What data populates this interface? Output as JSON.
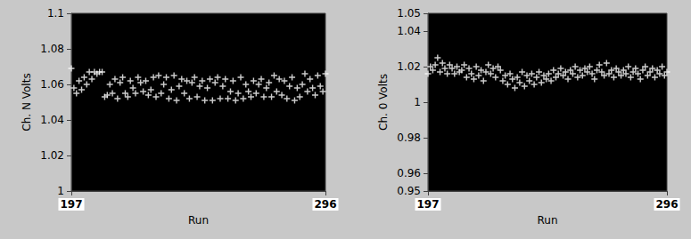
{
  "chart_data": [
    {
      "type": "scatter",
      "xlabel": "Run",
      "ylabel": "Ch. N Volts",
      "color": "#ffffff",
      "marker": "plus",
      "grid": false,
      "xlim": [
        197,
        296
      ],
      "xticks": [
        197,
        296
      ],
      "ylim": [
        1,
        1.1
      ],
      "yticks": [
        1,
        1.02,
        1.04,
        1.06,
        1.08,
        1.1
      ],
      "x": [
        197,
        198,
        199,
        200,
        201,
        202,
        203,
        204,
        205,
        206,
        207,
        208,
        209,
        210,
        211,
        212,
        213,
        214,
        215,
        216,
        217,
        218,
        219,
        220,
        221,
        222,
        223,
        224,
        225,
        226,
        227,
        228,
        229,
        230,
        231,
        232,
        233,
        234,
        235,
        236,
        237,
        238,
        239,
        240,
        241,
        242,
        243,
        244,
        245,
        246,
        247,
        248,
        249,
        250,
        251,
        252,
        253,
        254,
        255,
        256,
        257,
        258,
        259,
        260,
        261,
        262,
        263,
        264,
        265,
        266,
        267,
        268,
        269,
        270,
        271,
        272,
        273,
        274,
        275,
        276,
        277,
        278,
        279,
        280,
        281,
        282,
        283,
        284,
        285,
        286,
        287,
        288,
        289,
        290,
        291,
        292,
        293,
        294,
        295,
        296
      ],
      "values": [
        1.069,
        1.058,
        1.055,
        1.062,
        1.057,
        1.064,
        1.06,
        1.067,
        1.063,
        1.067,
        1.066,
        1.067,
        1.067,
        1.053,
        1.054,
        1.06,
        1.055,
        1.063,
        1.052,
        1.061,
        1.064,
        1.055,
        1.053,
        1.062,
        1.058,
        1.055,
        1.064,
        1.061,
        1.056,
        1.062,
        1.054,
        1.057,
        1.064,
        1.053,
        1.065,
        1.055,
        1.06,
        1.064,
        1.052,
        1.057,
        1.065,
        1.051,
        1.059,
        1.063,
        1.055,
        1.062,
        1.052,
        1.061,
        1.064,
        1.053,
        1.059,
        1.062,
        1.051,
        1.058,
        1.063,
        1.051,
        1.061,
        1.064,
        1.052,
        1.059,
        1.063,
        1.052,
        1.056,
        1.062,
        1.051,
        1.055,
        1.064,
        1.052,
        1.06,
        1.056,
        1.053,
        1.062,
        1.055,
        1.06,
        1.063,
        1.053,
        1.058,
        1.061,
        1.053,
        1.065,
        1.056,
        1.063,
        1.054,
        1.062,
        1.052,
        1.059,
        1.064,
        1.051,
        1.058,
        1.053,
        1.06,
        1.066,
        1.056,
        1.063,
        1.058,
        1.054,
        1.065,
        1.059,
        1.056,
        1.066
      ]
    },
    {
      "type": "scatter",
      "xlabel": "Run",
      "ylabel": "Ch. 0 Volts",
      "color": "#ffffff",
      "marker": "plus",
      "grid": false,
      "xlim": [
        197,
        296
      ],
      "xticks": [
        197,
        296
      ],
      "ylim": [
        0.95,
        1.05
      ],
      "yticks": [
        0.95,
        0.96,
        0.98,
        1,
        1.02,
        1.04,
        1.05
      ],
      "x": [
        197,
        198,
        199,
        200,
        201,
        202,
        203,
        204,
        205,
        206,
        207,
        208,
        209,
        210,
        211,
        212,
        213,
        214,
        215,
        216,
        217,
        218,
        219,
        220,
        221,
        222,
        223,
        224,
        225,
        226,
        227,
        228,
        229,
        230,
        231,
        232,
        233,
        234,
        235,
        236,
        237,
        238,
        239,
        240,
        241,
        242,
        243,
        244,
        245,
        246,
        247,
        248,
        249,
        250,
        251,
        252,
        253,
        254,
        255,
        256,
        257,
        258,
        259,
        260,
        261,
        262,
        263,
        264,
        265,
        266,
        267,
        268,
        269,
        270,
        271,
        272,
        273,
        274,
        275,
        276,
        277,
        278,
        279,
        280,
        281,
        282,
        283,
        284,
        285,
        286,
        287,
        288,
        289,
        290,
        291,
        292,
        293,
        294,
        295,
        296
      ],
      "values": [
        1.016,
        1.02,
        1.018,
        1.021,
        1.025,
        1.017,
        1.022,
        1.019,
        1.016,
        1.021,
        1.019,
        1.016,
        1.02,
        1.017,
        1.018,
        1.021,
        1.014,
        1.019,
        1.016,
        1.013,
        1.02,
        1.015,
        1.018,
        1.012,
        1.017,
        1.021,
        1.016,
        1.019,
        1.014,
        1.02,
        1.018,
        1.012,
        1.015,
        1.01,
        1.016,
        1.013,
        1.008,
        1.014,
        1.011,
        1.017,
        1.009,
        1.015,
        1.012,
        1.016,
        1.01,
        1.014,
        1.017,
        1.011,
        1.015,
        1.013,
        1.016,
        1.012,
        1.018,
        1.014,
        1.016,
        1.019,
        1.015,
        1.017,
        1.013,
        1.018,
        1.016,
        1.02,
        1.014,
        1.018,
        1.015,
        1.019,
        1.017,
        1.02,
        1.016,
        1.013,
        1.018,
        1.021,
        1.017,
        1.015,
        1.022,
        1.016,
        1.018,
        1.014,
        1.019,
        1.017,
        1.015,
        1.018,
        1.016,
        1.02,
        1.014,
        1.017,
        1.019,
        1.016,
        1.013,
        1.018,
        1.02,
        1.015,
        1.017,
        1.019,
        1.014,
        1.018,
        1.016,
        1.02,
        1.015,
        1.017
      ]
    }
  ]
}
